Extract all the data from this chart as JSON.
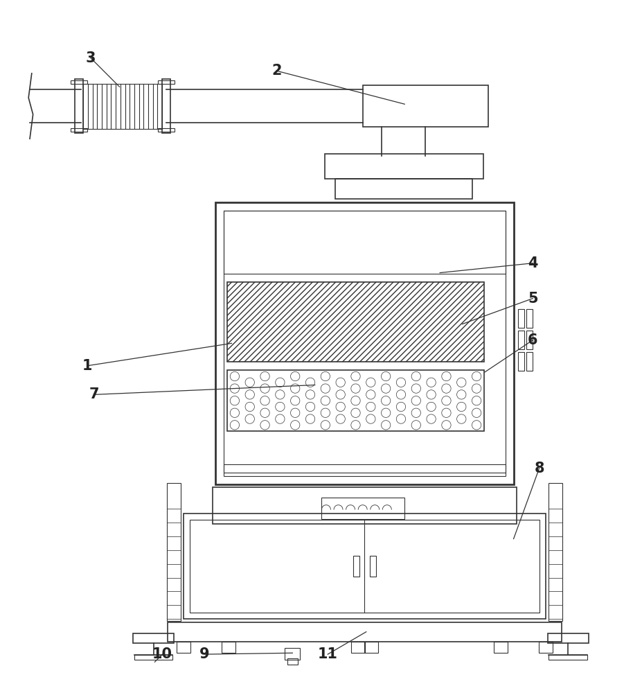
{
  "bg_color": "#ffffff",
  "line_color": "#333333",
  "figsize": [
    9.28,
    10.0
  ],
  "dpi": 100
}
